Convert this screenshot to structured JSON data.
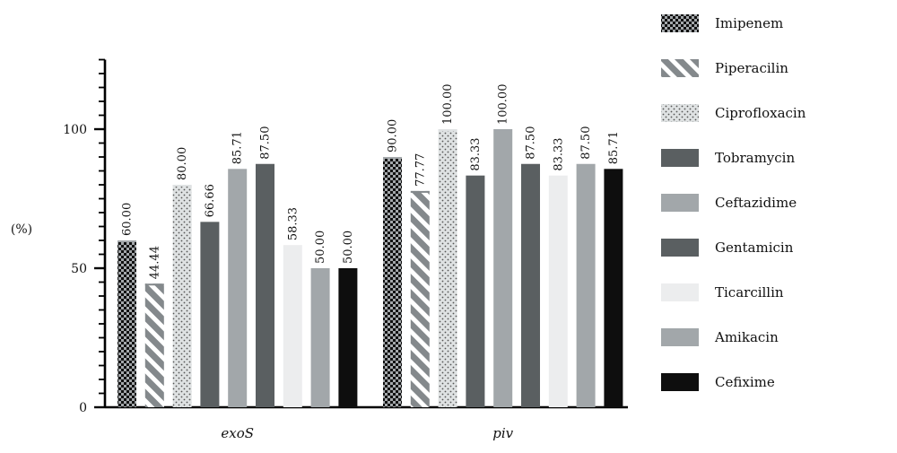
{
  "chart_data": {
    "type": "bar",
    "categories": [
      "exoS",
      "piv"
    ],
    "series": [
      {
        "name": "Imipenem",
        "values": [
          60.0,
          90.0
        ],
        "labels": [
          "60.00",
          "90.00"
        ],
        "color": "#a3a7aa",
        "pattern": "checker"
      },
      {
        "name": "Piperacilin",
        "values": [
          44.44,
          77.77
        ],
        "labels": [
          "44.44",
          "77.77"
        ],
        "color": "#84898c",
        "pattern": "diagonal"
      },
      {
        "name": "Ciprofloxacin",
        "values": [
          80.0,
          100.0
        ],
        "labels": [
          "80.00",
          "100.00"
        ],
        "color": "#dfe2e3",
        "pattern": "dots"
      },
      {
        "name": "Tobramycin",
        "values": [
          66.66,
          83.33
        ],
        "labels": [
          "66.66",
          "83.33"
        ],
        "color": "#5a5f61",
        "pattern": "solid"
      },
      {
        "name": "Ceftazidime",
        "values": [
          85.71,
          100.0
        ],
        "labels": [
          "85.71",
          "100.00"
        ],
        "color": "#a2a7aa",
        "pattern": "solid"
      },
      {
        "name": "Gentamicin",
        "values": [
          87.5,
          87.5
        ],
        "labels": [
          "87.50",
          "87.50"
        ],
        "color": "#5a5f61",
        "pattern": "solid"
      },
      {
        "name": "Ticarcillin",
        "values": [
          58.33,
          83.33
        ],
        "labels": [
          "58.33",
          "83.33"
        ],
        "color": "#ecedee",
        "pattern": "solid"
      },
      {
        "name": "Amikacin",
        "values": [
          50.0,
          87.5
        ],
        "labels": [
          "50.00",
          "87.50"
        ],
        "color": "#a2a7aa",
        "pattern": "solid"
      },
      {
        "name": "Cefixime",
        "values": [
          50.0,
          85.71
        ],
        "labels": [
          "50.00",
          "85.71"
        ],
        "color": "#0e0e0e",
        "pattern": "solid"
      }
    ],
    "ylabel": "(%)",
    "ylim": [
      0,
      125
    ],
    "yticks": [
      0,
      50,
      100
    ],
    "grid": false,
    "legend": "right"
  }
}
